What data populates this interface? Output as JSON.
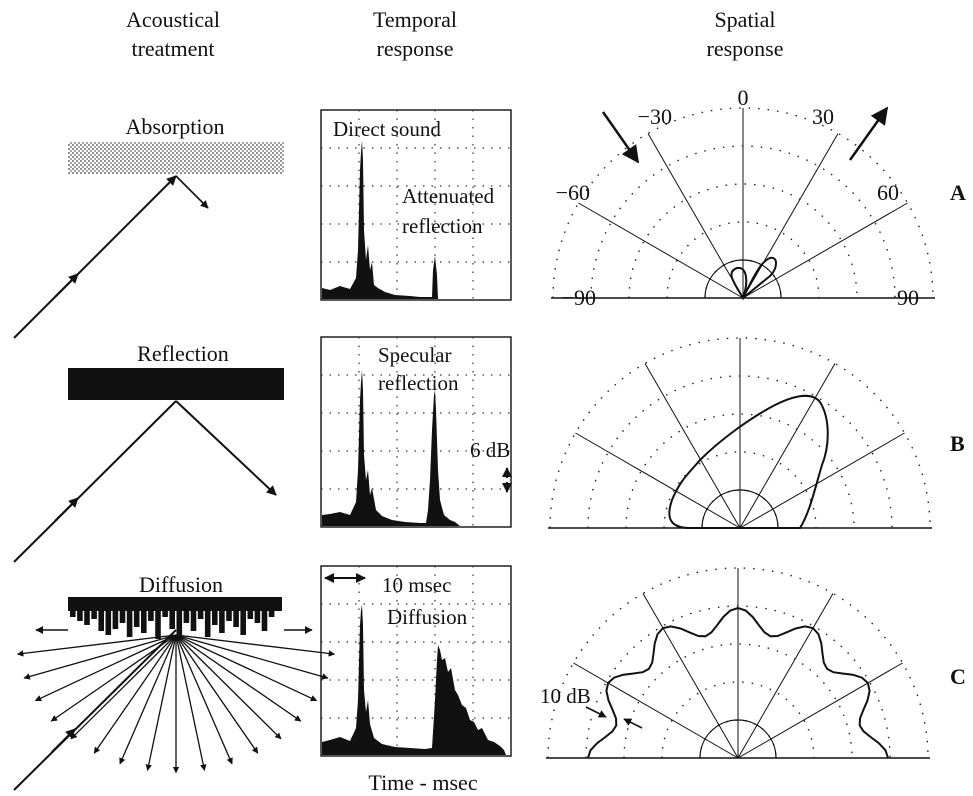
{
  "headers": {
    "col1": [
      "Acoustical",
      "treatment"
    ],
    "col2": [
      "Temporal",
      "response"
    ],
    "col3": [
      "Spatial",
      "response"
    ]
  },
  "rows": [
    {
      "id": "A",
      "treatment": "Absorption",
      "temporal_labels": [
        "Direct sound",
        "Attenuated",
        "reflection"
      ],
      "polar_angle_labels": [
        "0",
        "−30",
        "30",
        "−60",
        "60",
        "−90",
        "90"
      ]
    },
    {
      "id": "B",
      "treatment": "Reflection",
      "temporal_labels": [
        "Specular",
        "reflection",
        "6 dB"
      ]
    },
    {
      "id": "C",
      "treatment": "Diffusion",
      "temporal_labels": [
        "10 msec",
        "Diffusion"
      ],
      "spatial_labels": [
        "10 dB"
      ]
    }
  ],
  "footer": {
    "time_axis": "Time - msec"
  }
}
